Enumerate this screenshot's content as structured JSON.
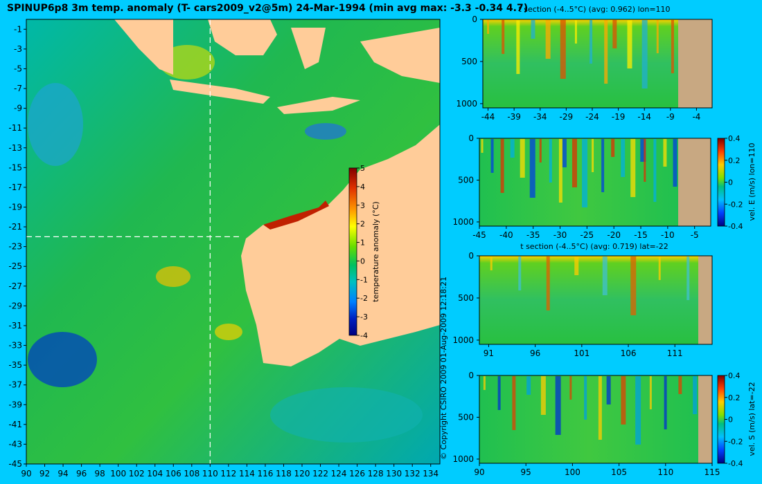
{
  "title": "SPINUP6p8 3m temp. anomaly (T- cars2009_v2@5m) 24-Mar-1994 (min avg max: -3.3 -0.34 4.7)",
  "copyright": "© Copyright CSIRO 2009   01-Aug-2009 12:18:21",
  "colors": {
    "background": "#00ccff",
    "land": "#ffcc99",
    "section_land": "#c8a882"
  },
  "chart_data": [
    {
      "type": "heatmap",
      "name": "map",
      "xlim": [
        90,
        135
      ],
      "ylim": [
        -45,
        0
      ],
      "x_ticks": [
        90,
        92,
        94,
        96,
        98,
        100,
        102,
        104,
        106,
        108,
        110,
        112,
        114,
        116,
        118,
        120,
        122,
        124,
        126,
        128,
        130,
        132,
        134
      ],
      "y_ticks": [
        -1,
        -3,
        -5,
        -7,
        -9,
        -11,
        -13,
        -15,
        -17,
        -19,
        -21,
        -23,
        -25,
        -27,
        -29,
        -31,
        -33,
        -35,
        -37,
        -39,
        -41,
        -43,
        -45
      ],
      "section_lines": {
        "lon": 110,
        "lat": -22
      },
      "colorbar": {
        "label": "temperature anomaly (°C)",
        "min": -4,
        "max": 5,
        "ticks": [
          5,
          4,
          3,
          2,
          1,
          0,
          -1,
          -2,
          -3,
          -4
        ]
      }
    },
    {
      "type": "heatmap",
      "name": "t-section-lon110",
      "title": "t section (-4..5°C) (avg: 0.962) lon=110",
      "x_ticks": [
        -44,
        -39,
        -34,
        -29,
        -24,
        -19,
        -14,
        -9,
        -4
      ],
      "xlim": [
        -45,
        -1
      ],
      "y_ticks": [
        0,
        500,
        1000
      ],
      "ylim": [
        0,
        1050
      ]
    },
    {
      "type": "heatmap",
      "name": "vel-e-section-lon110",
      "x_ticks": [
        -45,
        -40,
        -35,
        -30,
        -25,
        -20,
        -15,
        -10,
        -5
      ],
      "xlim": [
        -45,
        -2
      ],
      "y_ticks": [
        0,
        500,
        1000
      ],
      "ylim": [
        0,
        1050
      ],
      "colorbar": {
        "label": "vel. E (m/s) lon=110",
        "min": -0.4,
        "max": 0.4,
        "ticks": [
          "0.4",
          "0.2",
          "0",
          "-0.2",
          "-0.4"
        ]
      }
    },
    {
      "type": "heatmap",
      "name": "t-section-lat-22",
      "title": "t section (-4..5°C) (avg: 0.719) lat=-22",
      "x_ticks": [
        91,
        96,
        101,
        106,
        111
      ],
      "xlim": [
        90,
        115
      ],
      "y_ticks": [
        0,
        500,
        1000
      ],
      "ylim": [
        0,
        1050
      ]
    },
    {
      "type": "heatmap",
      "name": "vel-s-section-lat-22",
      "x_ticks": [
        90,
        95,
        100,
        105,
        110,
        115
      ],
      "xlim": [
        90,
        115
      ],
      "y_ticks": [
        0,
        500,
        1000
      ],
      "ylim": [
        0,
        1050
      ],
      "colorbar": {
        "label": "vel. S (m/s) lat=-22",
        "min": -0.4,
        "max": 0.4,
        "ticks": [
          "0.4",
          "0.2",
          "0",
          "-0.2",
          "-0.4"
        ]
      }
    }
  ]
}
